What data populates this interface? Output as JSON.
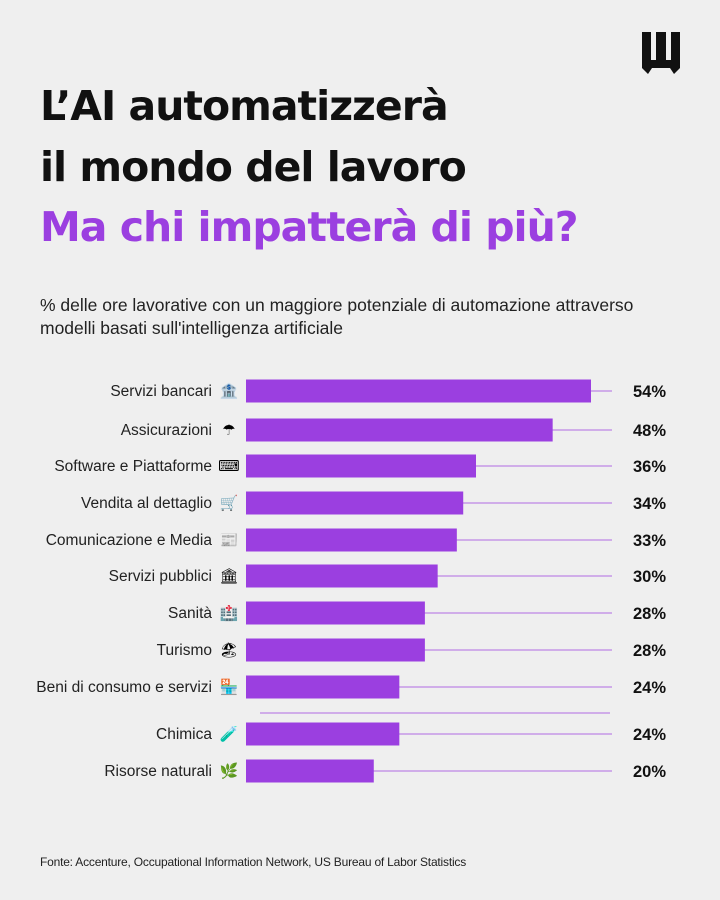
{
  "title": {
    "line1": "L’AI automatizzerà",
    "line2": "il mondo del lavoro",
    "line3": "Ma chi impatterà di più?"
  },
  "subtitle": "% delle ore lavorative con un maggiore potenziale di automazione attraverso modelli basati sull'intelligenza artificiale",
  "source": "Fonte: Accenture, Occupational Information Network, US Bureau of Labor Statistics",
  "colors": {
    "bar": "#9b3fe0",
    "accent": "#9b3fe0",
    "background": "#efefef",
    "text": "#111111"
  },
  "logo": {
    "icon": "brand-logo-icon"
  },
  "chart_data": {
    "type": "bar",
    "orientation": "horizontal",
    "categories": [
      "Servizi bancari",
      "Assicurazioni",
      "Software e Piattaforme",
      "Vendita al dettaglio",
      "Comunicazione e Media",
      "Servizi pubblici",
      "Sanità",
      "Turismo",
      "Beni di consumo e servizi",
      "Chimica",
      "Risorse naturali"
    ],
    "icons": [
      "🏦",
      "☂",
      "⌨",
      "🛒",
      "📰",
      "🏛",
      "🏥",
      "🏖",
      "🏪",
      "🧪",
      "🌿"
    ],
    "values": [
      54,
      48,
      36,
      34,
      33,
      30,
      28,
      28,
      24,
      24,
      20
    ],
    "value_labels": [
      "54%",
      "48%",
      "36%",
      "34%",
      "33%",
      "30%",
      "28%",
      "28%",
      "24%",
      "24%",
      "20%"
    ],
    "unit": "%",
    "xlim": [
      0,
      54
    ],
    "grid": false
  }
}
